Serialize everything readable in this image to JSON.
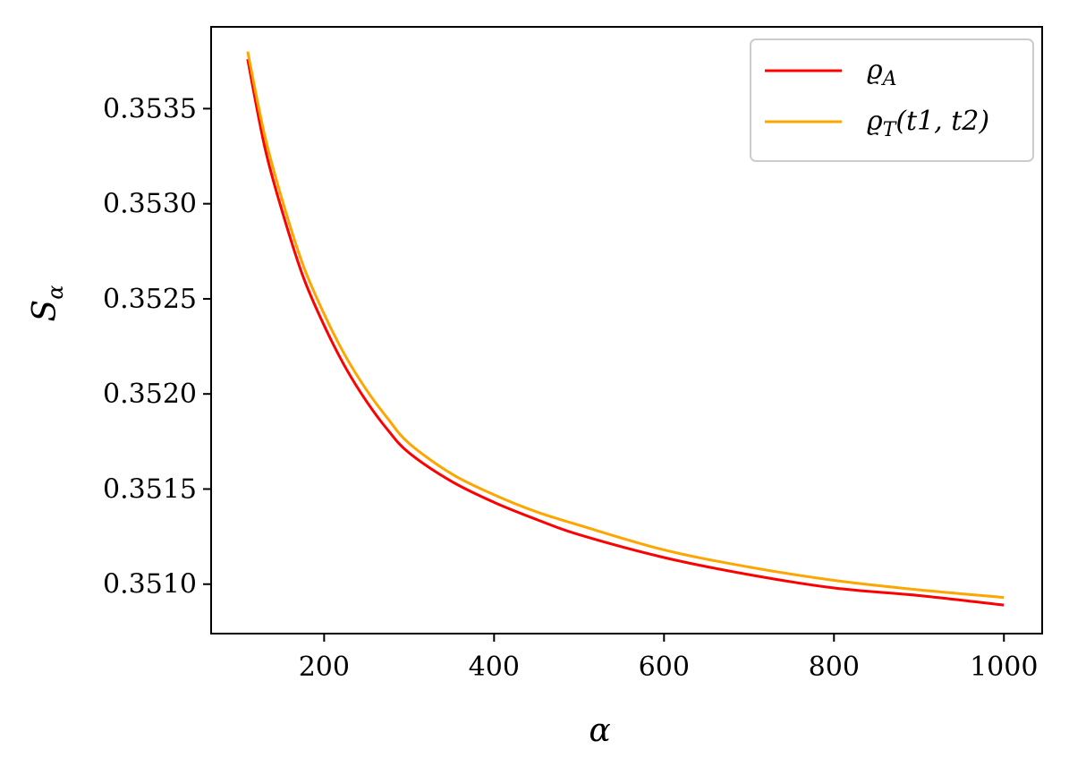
{
  "chart_data": {
    "type": "line",
    "xlabel": "α",
    "ylabel": "S",
    "ylabel_sub": "α",
    "xlim": [
      67,
      1045
    ],
    "ylim": [
      0.35074,
      0.35393
    ],
    "xticks": [
      {
        "value": 200,
        "label": "200"
      },
      {
        "value": 400,
        "label": "400"
      },
      {
        "value": 600,
        "label": "600"
      },
      {
        "value": 800,
        "label": "800"
      },
      {
        "value": 1000,
        "label": "1000"
      }
    ],
    "yticks": [
      {
        "value": 0.351,
        "label": "0.3510"
      },
      {
        "value": 0.3515,
        "label": "0.3515"
      },
      {
        "value": 0.352,
        "label": "0.3520"
      },
      {
        "value": 0.3525,
        "label": "0.3525"
      },
      {
        "value": 0.353,
        "label": "0.3530"
      },
      {
        "value": 0.3535,
        "label": "0.3535"
      }
    ],
    "grid": false,
    "legend_position": "top-right",
    "series": [
      {
        "name": "ϱ",
        "name_sub": "A",
        "color": "#ff0000",
        "x": [
          110,
          130,
          150,
          175,
          200,
          225,
          250,
          275,
          300,
          350,
          400,
          450,
          500,
          600,
          700,
          800,
          900,
          1000
        ],
        "y": [
          0.35376,
          0.3533,
          0.35297,
          0.35262,
          0.35236,
          0.35214,
          0.35196,
          0.35181,
          0.35169,
          0.35154,
          0.35143,
          0.35134,
          0.35126,
          0.35114,
          0.35105,
          0.35098,
          0.35094,
          0.35089
        ]
      },
      {
        "name": "ϱ",
        "name_sub": "T",
        "name_suffix": "(t1, t2)",
        "color": "#ffa500",
        "x": [
          110,
          130,
          150,
          175,
          200,
          225,
          250,
          275,
          300,
          350,
          400,
          450,
          500,
          600,
          700,
          800,
          900,
          1000
        ],
        "y": [
          0.3538,
          0.35336,
          0.35303,
          0.35268,
          0.35242,
          0.3522,
          0.35202,
          0.35187,
          0.35174,
          0.35158,
          0.35147,
          0.35138,
          0.35131,
          0.35118,
          0.35109,
          0.35102,
          0.35097,
          0.35093
        ]
      }
    ]
  }
}
